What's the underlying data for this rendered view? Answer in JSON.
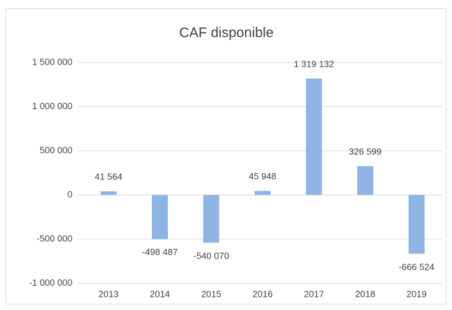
{
  "chart_data": {
    "type": "bar",
    "title": "CAF disponible",
    "categories": [
      "2013",
      "2014",
      "2015",
      "2016",
      "2017",
      "2018",
      "2019"
    ],
    "values": [
      41564,
      -498487,
      -540070,
      45948,
      1319132,
      326599,
      -666524
    ],
    "value_labels": [
      "41 564",
      "-498 487",
      "-540 070",
      "45 948",
      "1 319 132",
      "326 599",
      "-666 524"
    ],
    "color": "#8eb4e3",
    "ylim": [
      -1000000,
      1500000
    ],
    "yticks": [
      {
        "value": -1000000,
        "label": "-1 000 000"
      },
      {
        "value": -500000,
        "label": "-500 000"
      },
      0,
      {
        "value": 500000,
        "label": "500 000"
      },
      {
        "value": 1000000,
        "label": "1 000 000"
      },
      {
        "value": 1500000,
        "label": "1 500 000"
      }
    ],
    "grid": true
  }
}
